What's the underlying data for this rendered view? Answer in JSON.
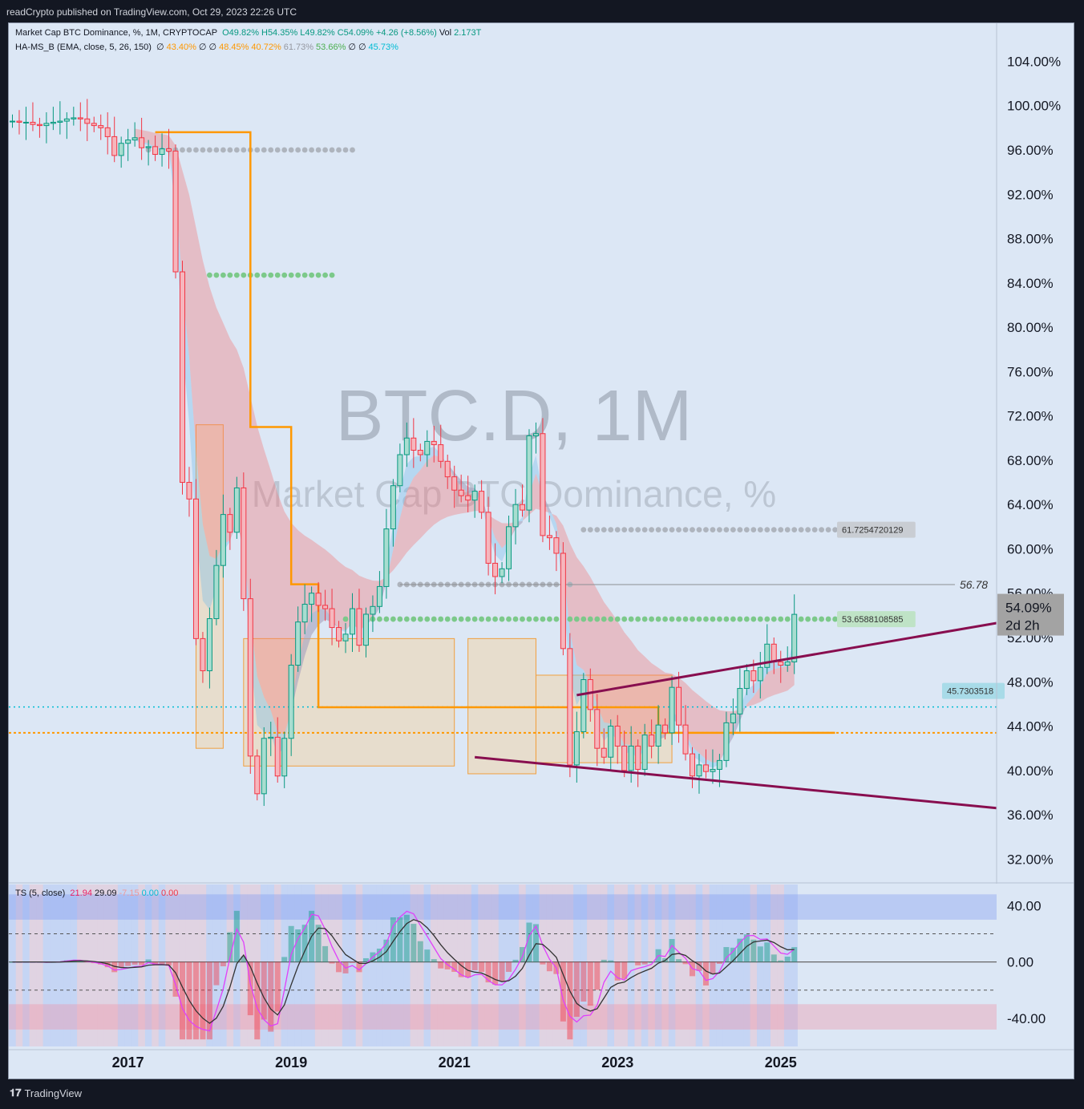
{
  "header": {
    "published": "readCrypto published on TradingView.com, Oct 29, 2023 22:26 UTC"
  },
  "legend": {
    "main_title": "Market Cap BTC Dominance, %, 1M, CRYPTOCAP",
    "main_ohlc": [
      {
        "t": "O49.82%",
        "c": "#089981"
      },
      {
        "t": "H54.35%",
        "c": "#089981"
      },
      {
        "t": "L49.82%",
        "c": "#089981"
      },
      {
        "t": "C54.09%",
        "c": "#089981"
      },
      {
        "t": "+4.26 (+8.56%)",
        "c": "#089981"
      },
      {
        "t": "Vol",
        "c": "#131722"
      },
      {
        "t": "2.173T",
        "c": "#089981"
      }
    ],
    "ind_title": "HA-MS_B (EMA, close, 5, 26, 150)",
    "ind_values": [
      {
        "t": "∅",
        "c": "#131722"
      },
      {
        "t": "43.40%",
        "c": "#ff9800"
      },
      {
        "t": "∅",
        "c": "#131722"
      },
      {
        "t": "∅",
        "c": "#131722"
      },
      {
        "t": "48.45%",
        "c": "#ff9800"
      },
      {
        "t": "40.72%",
        "c": "#ff9800"
      },
      {
        "t": "61.73%",
        "c": "#9598a1"
      },
      {
        "t": "53.66%",
        "c": "#4caf50"
      },
      {
        "t": "∅",
        "c": "#131722"
      },
      {
        "t": "∅",
        "c": "#131722"
      },
      {
        "t": "45.73%",
        "c": "#00bcd4"
      }
    ],
    "ts_title": "TS (5, close)",
    "ts_values": [
      {
        "t": "21.94",
        "c": "#e91e63"
      },
      {
        "t": "29.09",
        "c": "#131722"
      },
      {
        "t": "-7.15",
        "c": "#ef9a9a"
      },
      {
        "t": "0.00",
        "c": "#00bcd4"
      },
      {
        "t": "0.00",
        "c": "#f23645"
      }
    ]
  },
  "watermark": {
    "symbol": "BTC.D, 1M",
    "name": "Market Cap BTC Dominance, %"
  },
  "price_label": {
    "value": "54.09%",
    "countdown": "2d 2h"
  },
  "level_labels": {
    "gray_dots": "61.7254720129",
    "green_dots": "53.6588108585",
    "cyan_dots": "45.7303518",
    "hline": "56.78"
  },
  "footer": {
    "brand": "TradingView"
  },
  "colors": {
    "up": "#089981",
    "down": "#f23645",
    "orange": "#ff9800",
    "trendline": "#880e4f",
    "background": "#d9e5f4"
  },
  "chart_data": {
    "type": "candlestick",
    "title": "Market Cap BTC Dominance, %, 1M, CRYPTOCAP",
    "y_unit": "%",
    "y_range": [
      30,
      107
    ],
    "y_ticks": [
      "104.00%",
      "100.00%",
      "96.00%",
      "92.00%",
      "88.00%",
      "84.00%",
      "80.00%",
      "76.00%",
      "72.00%",
      "68.00%",
      "64.00%",
      "60.00%",
      "56.00%",
      "52.00%",
      "48.00%",
      "44.00%",
      "40.00%",
      "36.00%",
      "32.00%"
    ],
    "x_ticks": [
      "2017",
      "2019",
      "2021",
      "2023",
      "2025"
    ],
    "x_range": [
      "2015-08",
      "2025-12"
    ],
    "first_month": "2015-08",
    "closes": [
      98.6,
      98.5,
      98.5,
      98.3,
      98.2,
      98.4,
      98.5,
      98.6,
      98.8,
      98.9,
      98.8,
      98.4,
      98.2,
      98.0,
      97.2,
      95.5,
      96.6,
      96.9,
      97.1,
      96.2,
      96.3,
      95.6,
      96.1,
      95.9,
      85.0,
      66.0,
      64.5,
      51.9,
      49.0,
      53.7,
      58.5,
      63.1,
      61.5,
      65.5,
      55.5,
      41.3,
      37.9,
      42.9,
      43.0,
      39.5,
      42.9,
      49.5,
      53.4,
      55.0,
      56.0,
      54.9,
      54.6,
      52.9,
      51.7,
      52.3,
      54.6,
      51.3,
      54.1,
      54.8,
      56.6,
      61.8,
      65.7,
      68.5,
      70.0,
      68.9,
      68.5,
      69.7,
      69.4,
      67.9,
      66.5,
      65.3,
      64.8,
      64.4,
      65.2,
      63.3,
      58.7,
      57.5,
      58.2,
      62.0,
      64.0,
      63.5,
      70.2,
      70.4,
      61.2,
      61.0,
      59.6,
      51.0,
      40.5,
      43.5,
      48.2,
      45.5,
      42.0,
      41.2,
      44.0,
      42.2,
      40.0,
      42.2,
      40.1,
      43.2,
      42.2,
      44.1,
      43.4,
      47.5,
      44.1,
      41.5,
      39.5,
      40.5,
      39.9,
      40.1,
      40.9,
      44.3,
      45.1,
      47.4,
      49.0,
      48.1,
      49.3,
      51.4,
      49.8,
      49.5,
      49.8,
      54.09
    ],
    "levels": [
      {
        "name": "gray-dots-upper",
        "value": 61.7254720129
      },
      {
        "name": "green-dots",
        "value": 53.6588108585
      },
      {
        "name": "cyan-dots",
        "value": 45.7303518
      },
      {
        "name": "orange-dots",
        "value": 43.4
      },
      {
        "name": "gray-hline",
        "value": 56.78
      },
      {
        "name": "gray-dots-early",
        "value": 96.0
      },
      {
        "name": "green-dots-early",
        "value": 84.7
      },
      {
        "name": "gray-dots-mid",
        "value": 56.78
      }
    ],
    "trendlines": [
      {
        "from": [
          "2022-07",
          46.8
        ],
        "to": [
          "2025-11",
          53.3
        ]
      },
      {
        "from": [
          "2021-04",
          41.2
        ],
        "to": [
          "2025-11",
          36.6
        ]
      }
    ],
    "boxes": [
      {
        "from": [
          "2018-06",
          40.4
        ],
        "to": [
          "2021-01",
          51.9
        ]
      },
      {
        "from": [
          "2021-03",
          39.7
        ],
        "to": [
          "2022-01",
          51.9
        ]
      },
      {
        "from": [
          "2022-01",
          40.7
        ],
        "to": [
          "2023-09",
          48.6
        ]
      },
      {
        "from": [
          "2017-11",
          42.0
        ],
        "to": [
          "2018-03",
          71.2
        ]
      }
    ],
    "oscillator": {
      "name": "TS (5, close)",
      "y_ticks": [
        "40.00",
        "0.00",
        "-40.00"
      ],
      "y_range": [
        -60,
        55
      ],
      "bands": [
        [
          30,
          48
        ],
        [
          -48,
          -30
        ]
      ],
      "dashed": [
        20,
        -20
      ]
    }
  }
}
